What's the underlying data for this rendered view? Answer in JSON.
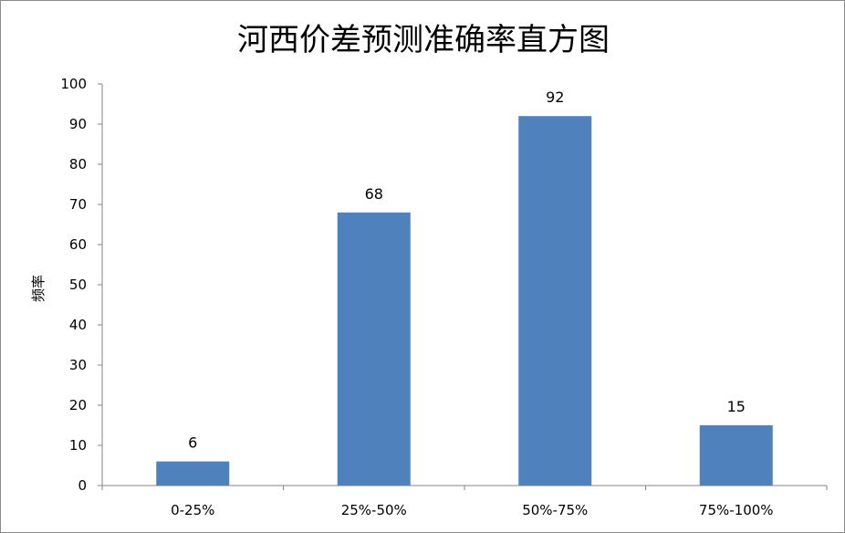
{
  "chart_data": {
    "type": "bar",
    "title": "河西价差预测准确率直方图",
    "xlabel": "",
    "ylabel": "频率",
    "categories": [
      "0-25%",
      "25%-50%",
      "50%-75%",
      "75%-100%"
    ],
    "values": [
      6,
      68,
      92,
      15
    ],
    "ylim": [
      0,
      100
    ],
    "yticks": [
      0,
      10,
      20,
      30,
      40,
      50,
      60,
      70,
      80,
      90,
      100
    ],
    "grid": false,
    "legend": "none",
    "data_labels": true,
    "colors": {
      "bar": "#4F81BD",
      "axis": "#868686"
    }
  }
}
